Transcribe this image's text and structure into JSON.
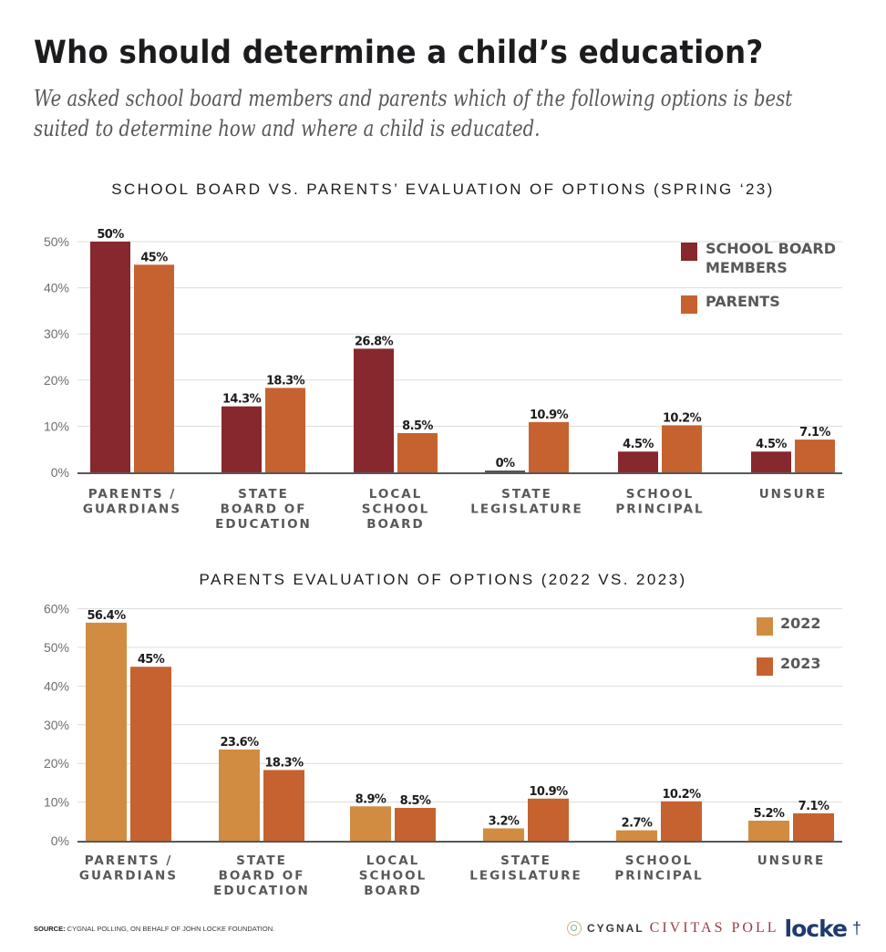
{
  "header": {
    "title": "Who should determine a child’s education?",
    "subtitle": "We asked school board members and parents which of the following options is best suited to determine how and where a child is educated."
  },
  "colors": {
    "school_board": "#86282d",
    "parents": "#c6622f",
    "y2022": "#d18c42",
    "y2023": "#c6622f",
    "grid": "#dcdcdc",
    "axis": "#58585a"
  },
  "chart_data": [
    {
      "type": "bar",
      "title": "SCHOOL BOARD VS. PARENTS’ EVALUATION OF OPTIONS (SPRING ‘23)",
      "xlabel": "",
      "ylabel": "",
      "ylim": [
        0,
        50
      ],
      "yticks": [
        "0%",
        "10%",
        "20%",
        "30%",
        "40%",
        "50%"
      ],
      "grid": true,
      "legend_position": "top-right",
      "categories": [
        [
          "PARENTS /",
          "GUARDIANS"
        ],
        [
          "STATE",
          "BOARD OF",
          "EDUCATION"
        ],
        [
          "LOCAL",
          "SCHOOL",
          "BOARD"
        ],
        [
          "STATE",
          "LEGISLATURE"
        ],
        [
          "SCHOOL",
          "PRINCIPAL"
        ],
        [
          "UNSURE"
        ]
      ],
      "series": [
        {
          "name": [
            "SCHOOL BOARD",
            "MEMBERS"
          ],
          "color_key": "school_board",
          "values": [
            50,
            14.3,
            26.8,
            0,
            4.5,
            4.5
          ],
          "labels": [
            "50%",
            "14.3%",
            "26.8%",
            "0%",
            "4.5%",
            "4.5%"
          ]
        },
        {
          "name": [
            "PARENTS"
          ],
          "color_key": "parents",
          "values": [
            45,
            18.3,
            8.5,
            10.9,
            10.2,
            7.1
          ],
          "labels": [
            "45%",
            "18.3%",
            "8.5%",
            "10.9%",
            "10.2%",
            "7.1%"
          ]
        }
      ]
    },
    {
      "type": "bar",
      "title": "PARENTS EVALUATION OF OPTIONS (2022 VS. 2023)",
      "xlabel": "",
      "ylabel": "",
      "ylim": [
        0,
        60
      ],
      "yticks": [
        "0%",
        "10%",
        "20%",
        "30%",
        "40%",
        "50%",
        "60%"
      ],
      "grid": true,
      "legend_position": "top-right",
      "categories": [
        [
          "PARENTS /",
          "GUARDIANS"
        ],
        [
          "STATE",
          "BOARD OF",
          "EDUCATION"
        ],
        [
          "LOCAL",
          "SCHOOL",
          "BOARD"
        ],
        [
          "STATE",
          "LEGISLATURE"
        ],
        [
          "SCHOOL",
          "PRINCIPAL"
        ],
        [
          "UNSURE"
        ]
      ],
      "series": [
        {
          "name": [
            "2022"
          ],
          "color_key": "y2022",
          "values": [
            56.4,
            23.6,
            8.9,
            3.2,
            2.7,
            5.2
          ],
          "labels": [
            "56.4%",
            "23.6%",
            "8.9%",
            "3.2%",
            "2.7%",
            "5.2%"
          ]
        },
        {
          "name": [
            "2023"
          ],
          "color_key": "y2023",
          "values": [
            45,
            18.3,
            8.5,
            10.9,
            10.2,
            7.1
          ],
          "labels": [
            "45%",
            "18.3%",
            "8.5%",
            "10.9%",
            "10.2%",
            "7.1%"
          ]
        }
      ]
    }
  ],
  "footer": {
    "source_label": "SOURCE:",
    "source_text": " CYGNAL POLLING, ON BEHALF OF JOHN LOCKE FOUNDATION.",
    "logos": {
      "cygnal": "CYGNAL",
      "civitas": "CIVITAS POLL",
      "locke": "locke"
    }
  }
}
